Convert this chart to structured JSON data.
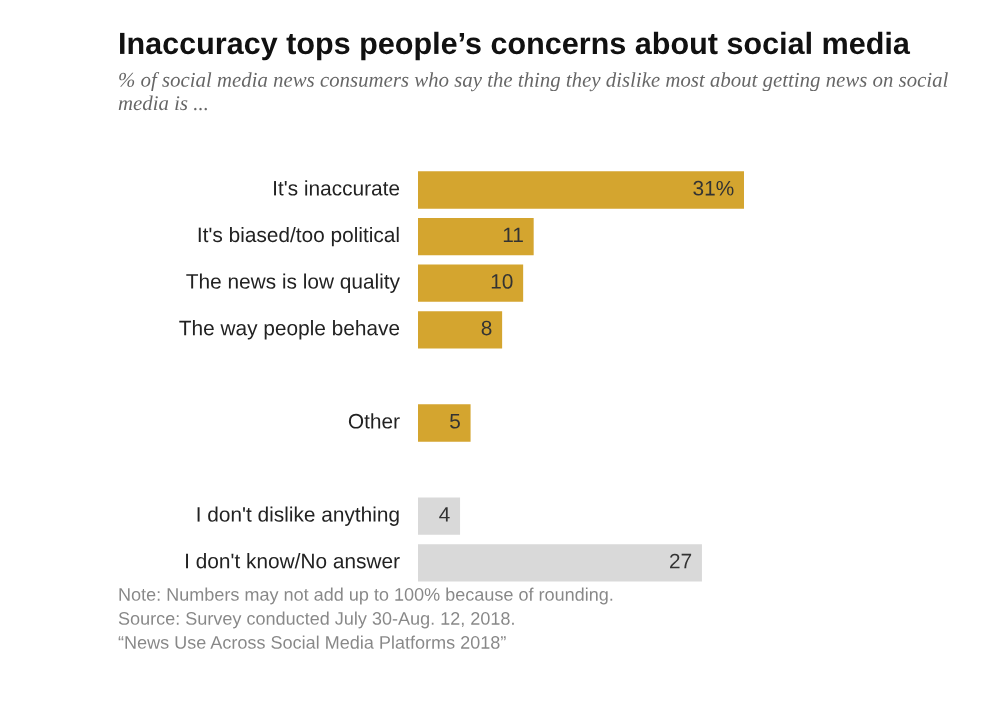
{
  "chart_data": {
    "type": "bar",
    "orientation": "horizontal",
    "title": "Inaccuracy tops people’s concerns about social media",
    "subtitle": "% of social media news consumers who say the thing they dislike most about getting news on social media is ...",
    "categories": [
      "It's inaccurate",
      "It's biased/too political",
      "The news is low quality",
      "The way people behave",
      null,
      "Other",
      null,
      "I don't dislike anything",
      "I don't know/No answer"
    ],
    "values": [
      31,
      11,
      10,
      8,
      null,
      5,
      null,
      4,
      27
    ],
    "colors": [
      "#d4a52f",
      "#d4a52f",
      "#d4a52f",
      "#d4a52f",
      "#d4a52f",
      "#d4a52f",
      "#d9d9d9",
      "#d9d9d9",
      "#d9d9d9"
    ],
    "value_labels": [
      "31%",
      "11",
      "10",
      "8",
      null,
      "5",
      null,
      "4",
      "27"
    ],
    "grid": false,
    "tick_labels": false,
    "annotations": [
      "Note: Numbers may not add up to 100% because of rounding.",
      "Source: Survey conducted July 30-Aug. 12, 2018.",
      "“News Use Across Social Media Platforms 2018”"
    ]
  }
}
